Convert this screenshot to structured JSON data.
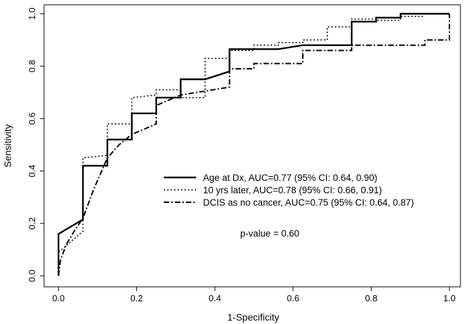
{
  "chart_data": {
    "type": "line",
    "title": "",
    "xlabel": "1-Specificity",
    "ylabel": "Sensitivity",
    "xlim": [
      0,
      1
    ],
    "ylim": [
      0,
      1
    ],
    "xticks": [
      0.0,
      0.2,
      0.4,
      0.6,
      0.8,
      1.0
    ],
    "yticks": [
      0.0,
      0.2,
      0.4,
      0.6,
      0.8,
      1.0
    ],
    "xtick_labels": [
      "0.0",
      "0.2",
      "0.4",
      "0.6",
      "0.8",
      "1.0"
    ],
    "ytick_labels": [
      "0.0",
      "0.2",
      "0.4",
      "0.6",
      "0.8",
      "1.0"
    ],
    "grid": false,
    "legend_position": "center-right",
    "series": [
      {
        "name": "Age at Dx, AUC=0.77 (95% CI: 0.64, 0.90)",
        "style": "solid",
        "x": [
          0.0,
          0.0,
          0.0625,
          0.0625,
          0.125,
          0.125,
          0.1875,
          0.1875,
          0.25,
          0.25,
          0.3125,
          0.3125,
          0.375,
          0.4375,
          0.4375,
          0.5625,
          0.625,
          0.75,
          0.75,
          0.8125,
          0.8125,
          0.875,
          0.875,
          1.0
        ],
        "y": [
          0.0,
          0.16,
          0.215,
          0.42,
          0.42,
          0.52,
          0.52,
          0.62,
          0.62,
          0.68,
          0.68,
          0.75,
          0.75,
          0.78,
          0.865,
          0.865,
          0.88,
          0.88,
          0.97,
          0.97,
          0.985,
          0.985,
          1.0,
          1.0
        ]
      },
      {
        "name": "10 yrs later, AUC=0.78 (95% CI: 0.66, 0.91)",
        "style": "dotted",
        "x": [
          0.0,
          0.0,
          0.0625,
          0.0625,
          0.125,
          0.125,
          0.1875,
          0.1875,
          0.25,
          0.25,
          0.3125,
          0.3125,
          0.375,
          0.375,
          0.4375,
          0.4375,
          0.5,
          0.5,
          0.5625,
          0.5625,
          0.625,
          0.625,
          0.6875,
          0.6875,
          0.75,
          0.75,
          0.8125,
          0.8125,
          0.875,
          0.875,
          0.9375
        ],
        "y": [
          0.0,
          0.09,
          0.17,
          0.45,
          0.46,
          0.58,
          0.58,
          0.68,
          0.69,
          0.71,
          0.71,
          0.68,
          0.68,
          0.83,
          0.83,
          0.86,
          0.86,
          0.88,
          0.88,
          0.89,
          0.89,
          0.9,
          0.9,
          0.95,
          0.95,
          0.98,
          0.98,
          0.975,
          0.975,
          0.99,
          0.99
        ]
      },
      {
        "name": "DCIS as no cancer, AUC=0.75 (95% CI: 0.64, 0.87)",
        "style": "dashed",
        "x": [
          0.0,
          0.005,
          0.02,
          0.04,
          0.0625,
          0.09,
          0.125,
          0.155,
          0.1875,
          0.22,
          0.25,
          0.25,
          0.3125,
          0.3125,
          0.4375,
          0.4375,
          0.5,
          0.5,
          0.625,
          0.625,
          0.75,
          0.75,
          0.9375,
          0.9375,
          1.0,
          1.0
        ],
        "y": [
          0.0,
          0.06,
          0.12,
          0.17,
          0.22,
          0.33,
          0.45,
          0.5,
          0.54,
          0.56,
          0.58,
          0.65,
          0.69,
          0.69,
          0.72,
          0.79,
          0.79,
          0.81,
          0.81,
          0.86,
          0.86,
          0.88,
          0.88,
          0.9,
          0.9,
          1.0
        ]
      }
    ],
    "annotations": [
      {
        "text": "p-value = 0.60",
        "x": 0.5,
        "y": 0.16
      }
    ]
  }
}
